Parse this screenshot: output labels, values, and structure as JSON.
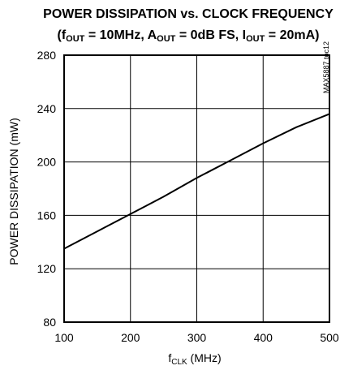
{
  "chart_data": {
    "type": "line",
    "title_line1": "POWER DISSIPATION vs. CLOCK FREQUENCY",
    "title_line2": {
      "open": "(f",
      "f_sub": "OUT",
      "part1": " = 10MHz, A",
      "a_sub": "OUT",
      "part2": " = 0dB FS, I",
      "i_sub": "OUT",
      "part3": " = 20mA)"
    },
    "xlabel": {
      "main": "f",
      "sub": "CLK",
      "rest": " (MHz)"
    },
    "ylabel": "POWER DISSIPATION (mW)",
    "watermark": "MAX5887 toc12",
    "xlim": [
      100,
      500
    ],
    "ylim": [
      80,
      280
    ],
    "xticks": [
      100,
      200,
      300,
      400,
      500
    ],
    "yticks": [
      80,
      120,
      160,
      200,
      240,
      280
    ],
    "grid": true,
    "series": [
      {
        "x": [
          100,
          150,
          200,
          250,
          300,
          350,
          400,
          450,
          500
        ],
        "y": [
          135,
          148,
          161,
          174,
          188,
          201,
          214,
          226,
          236
        ]
      }
    ],
    "colors": {
      "line": "#000000",
      "grid": "#000000",
      "frame": "#000000"
    }
  }
}
